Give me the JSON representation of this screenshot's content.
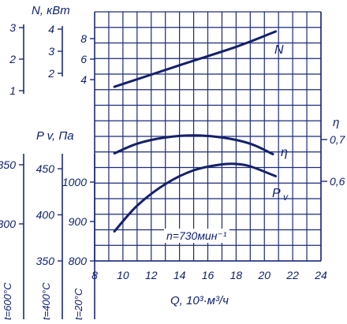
{
  "chart_data": {
    "type": "line",
    "x_label_text": "Q, 10³·м³/ч",
    "xlim": [
      8,
      24
    ],
    "x_ticks": [
      "8",
      "10",
      "12",
      "14",
      "16",
      "18",
      "20",
      "22",
      "24"
    ],
    "annotation": "n=730мин⁻¹",
    "power_axis": {
      "title": "N, кВт",
      "scales": [
        {
          "range": [
            1,
            3
          ],
          "ticks": [
            "1",
            "2",
            "3"
          ]
        },
        {
          "range": [
            2,
            4
          ],
          "ticks": [
            "2",
            "3",
            "4"
          ]
        },
        {
          "range": [
            4,
            8
          ],
          "ticks": [
            "4",
            "6",
            "8"
          ]
        }
      ]
    },
    "pressure_axis": {
      "title": "P v, Па",
      "scales": [
        {
          "label": "t=600°C",
          "range": [
            250,
            350
          ],
          "ticks": [
            "300",
            "350"
          ]
        },
        {
          "label": "t=400°C",
          "range": [
            350,
            450
          ],
          "ticks": [
            "350",
            "400",
            "450"
          ]
        },
        {
          "label": "t=20°C",
          "range": [
            800,
            1000
          ],
          "ticks": [
            "800",
            "900",
            "1000"
          ]
        }
      ]
    },
    "efficiency_axis": {
      "title": "η",
      "ticks": [
        "0,6",
        "0,7"
      ]
    },
    "series": [
      {
        "name": "N",
        "axis": "power",
        "x": [
          9.4,
          14,
          18,
          20.8
        ],
        "y": [
          3.3,
          5.4,
          7.2,
          8.7
        ]
      },
      {
        "name": "η",
        "axis": "efficiency",
        "x": [
          9.4,
          11,
          13,
          15,
          17,
          19,
          20.6
        ],
        "y": [
          0.667,
          0.69,
          0.705,
          0.71,
          0.705,
          0.69,
          0.665
        ]
      },
      {
        "name": "Pv",
        "axis": "pressure",
        "x": [
          9.4,
          11,
          13,
          15,
          17,
          18,
          19,
          20.8
        ],
        "y": [
          875,
          940,
          995,
          1030,
          1045,
          1046,
          1040,
          1015
        ]
      }
    ]
  }
}
